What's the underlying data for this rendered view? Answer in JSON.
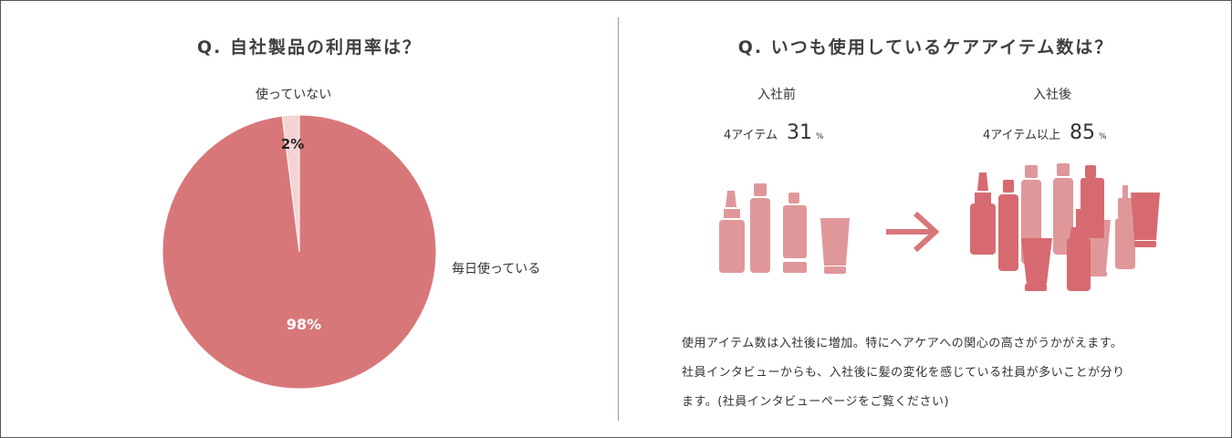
{
  "chart_data": [
    {
      "type": "pie",
      "title": "Q. 自社製品の利用率は？",
      "slices": [
        {
          "label": "使っていない",
          "value": 2,
          "value_label": "2%",
          "color": "#f4d3d5"
        },
        {
          "label": "毎日使っている",
          "value": 98,
          "value_label": "98%",
          "color": "#d8777a"
        }
      ],
      "start": "top",
      "direction": "counter-clockwise"
    },
    {
      "type": "table",
      "title": "Q. いつも使用しているケアアイテム数は？",
      "before": {
        "heading": "入社前",
        "label": "4アイテム",
        "value": 31,
        "unit": "%"
      },
      "after": {
        "heading": "入社後",
        "label": "4アイテム以上",
        "value": 85,
        "unit": "%"
      }
    }
  ],
  "colors": {
    "pink_dark": "#d76a70",
    "pink_mid": "#e0979a",
    "pink_light": "#f4d3d5",
    "arrow": "#d8777a"
  },
  "icons": {
    "before": "cosmetic-bottles-few-icon",
    "arrow": "arrow-right-icon",
    "after": "cosmetic-bottles-many-icon"
  },
  "caption": [
    "使用アイテム数は入社後に増加。特にヘアケアへの関心の高さがうかがえます。",
    "社員インタビューからも、入社後に髪の変化を感じている社員が多いことが分り",
    "ます。(社員インタビューページをご覧ください)"
  ]
}
